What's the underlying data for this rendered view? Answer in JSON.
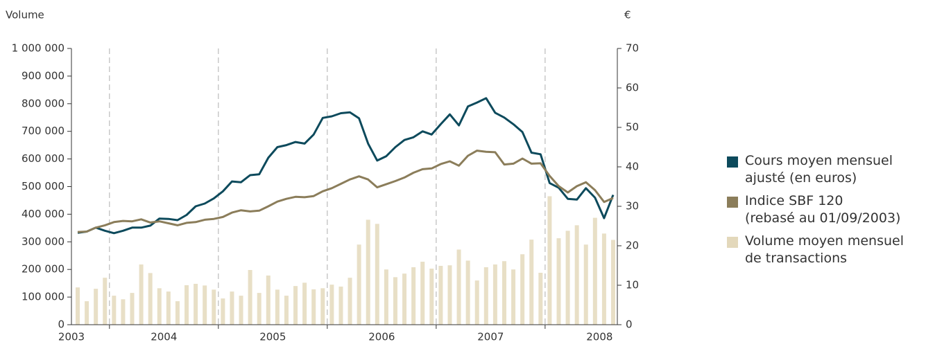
{
  "chart_data": {
    "type": "combo",
    "y_label": "Volume",
    "y2_label": "€",
    "categories": [
      "2003",
      null,
      null,
      null,
      "2004",
      null,
      null,
      null,
      null,
      null,
      null,
      null,
      null,
      null,
      null,
      null,
      "2005",
      null,
      null,
      null,
      null,
      null,
      null,
      null,
      null,
      null,
      null,
      null,
      "2006",
      null,
      null,
      null,
      null,
      null,
      null,
      null,
      null,
      null,
      null,
      null,
      "2007",
      null,
      null,
      null,
      null,
      null,
      null,
      null,
      null,
      null,
      null,
      null,
      "2008",
      null,
      null,
      null,
      null,
      null,
      null,
      null
    ],
    "series": [
      {
        "name": "Cours moyen mensuel\najusté (en euros)",
        "type": "line",
        "axis": "y2",
        "color": "#0d4a5c",
        "values": [
          23.3,
          23.6,
          24.6,
          23.8,
          23.2,
          23.8,
          24.6,
          24.6,
          25.1,
          26.9,
          26.8,
          26.5,
          27.8,
          30.0,
          30.7,
          32.0,
          33.8,
          36.3,
          36.1,
          37.9,
          38.1,
          42.3,
          45.0,
          45.5,
          46.3,
          45.9,
          48.2,
          52.4,
          52.8,
          53.6,
          53.8,
          52.3,
          45.9,
          41.6,
          42.7,
          45.0,
          46.8,
          47.5,
          49.0,
          48.2,
          50.8,
          53.3,
          50.5,
          55.3,
          56.3,
          57.4,
          53.7,
          52.5,
          50.8,
          48.8,
          43.6,
          43.2,
          35.9,
          34.7,
          31.9,
          31.7,
          34.6,
          32.2,
          27.0,
          32.9
        ]
      },
      {
        "name": "Indice SBF 120\n(rebasé au 01/09/2003)",
        "type": "line",
        "axis": "y2",
        "color": "#8b7d5a",
        "values": [
          23.5,
          23.6,
          24.6,
          25.2,
          26.0,
          26.3,
          26.2,
          26.7,
          25.9,
          26.2,
          25.7,
          25.2,
          25.8,
          26.0,
          26.6,
          26.8,
          27.3,
          28.4,
          29.0,
          28.7,
          28.9,
          30.0,
          31.2,
          31.9,
          32.4,
          32.3,
          32.6,
          33.8,
          34.6,
          35.7,
          36.8,
          37.6,
          36.8,
          34.8,
          35.6,
          36.4,
          37.3,
          38.5,
          39.4,
          39.6,
          40.7,
          41.4,
          40.3,
          42.8,
          44.1,
          43.8,
          43.7,
          40.6,
          40.8,
          42.1,
          40.8,
          40.9,
          37.7,
          35.1,
          33.5,
          35.1,
          36.1,
          34.1,
          31.1,
          32.1
        ]
      },
      {
        "name": "Volume moyen mensuel\nde transactions",
        "type": "bar",
        "axis": "y",
        "color": "#e8dfc6",
        "values": [
          135000,
          85000,
          130000,
          170000,
          105000,
          92000,
          115000,
          218000,
          187000,
          132000,
          120000,
          85000,
          143000,
          148000,
          142000,
          127000,
          95000,
          120000,
          105000,
          198000,
          115000,
          178000,
          127000,
          105000,
          140000,
          152000,
          128000,
          132000,
          145000,
          138000,
          170000,
          290000,
          380000,
          365000,
          200000,
          172000,
          185000,
          208000,
          228000,
          203000,
          213000,
          215000,
          272000,
          232000,
          160000,
          208000,
          218000,
          230000,
          200000,
          255000,
          308000,
          188000,
          465000,
          313000,
          340000,
          360000,
          290000,
          387000,
          330000,
          307000
        ]
      }
    ],
    "ylim": [
      0,
      1000000
    ],
    "yticks": [
      0,
      {
        "value": 100000,
        "label": "100 000"
      },
      {
        "value": 200000,
        "label": "200 000"
      },
      {
        "value": 300000,
        "label": "300 000"
      },
      {
        "value": 400000,
        "label": "400 000"
      },
      {
        "value": 500000,
        "label": "500 000"
      },
      {
        "value": 600000,
        "label": "600 000"
      },
      {
        "value": 700000,
        "label": "700 000"
      },
      {
        "value": 800000,
        "label": "800 000"
      },
      {
        "value": 900000,
        "label": "900 000"
      },
      {
        "value": 1000000,
        "label": "1 000 000"
      }
    ],
    "y2lim": [
      0,
      70
    ],
    "y2ticks": [
      0,
      10,
      20,
      30,
      40,
      50,
      60,
      70
    ],
    "grid": false,
    "legend": "right"
  }
}
